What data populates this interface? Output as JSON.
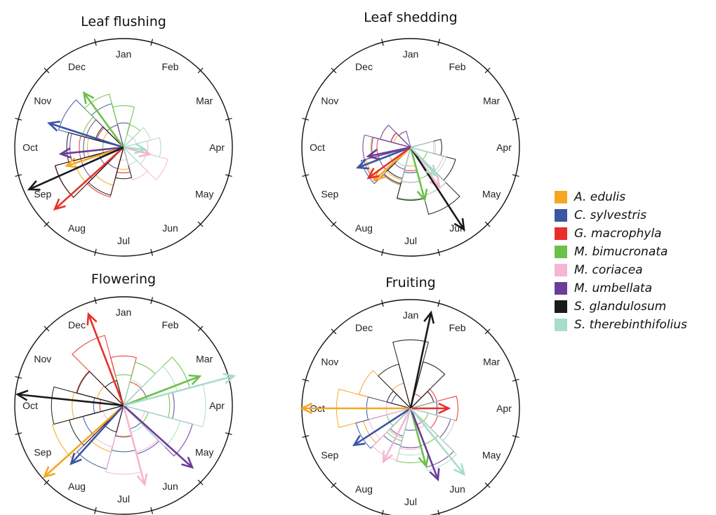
{
  "legend": {
    "species": [
      {
        "name": "A. edulis",
        "color": "#F5A623"
      },
      {
        "name": "C. sylvestris",
        "color": "#3A55A4"
      },
      {
        "name": "G. macrophyla",
        "color": "#E8302A"
      },
      {
        "name": "M. bimucronata",
        "color": "#6CC04A"
      },
      {
        "name": "M. coriacea",
        "color": "#F4B6D2"
      },
      {
        "name": "M. umbellata",
        "color": "#6A3D9A"
      },
      {
        "name": "S. glandulosum",
        "color": "#1A1A1A"
      },
      {
        "name": "S. therebinthifolius",
        "color": "#A8DCCB"
      }
    ]
  },
  "chart_data": [
    {
      "type": "circular-rose",
      "title": "Leaf flushing",
      "months": [
        "Jan",
        "Feb",
        "Mar",
        "Apr",
        "May",
        "Jun",
        "Jul",
        "Aug",
        "Sep",
        "Oct",
        "Nov",
        "Dec"
      ],
      "mean_vectors": [
        {
          "species": "A. edulis",
          "month": 8.4,
          "length": 0.55
        },
        {
          "species": "C. sylvestris",
          "month": 9.6,
          "length": 0.72
        },
        {
          "species": "G. macrophyla",
          "month": 7.6,
          "length": 0.85
        },
        {
          "species": "M. bimucronata",
          "month": 10.8,
          "length": 0.62
        },
        {
          "species": "M. coriacea",
          "month": 3.5,
          "length": 0.25
        },
        {
          "species": "M. umbellata",
          "month": 8.8,
          "length": 0.58
        },
        {
          "species": "S. glandulosum",
          "month": 8.2,
          "length": 0.95
        },
        {
          "species": "S. therebinthifolius",
          "month": 3.2,
          "length": 0.2
        }
      ]
    },
    {
      "type": "circular-rose",
      "title": "Leaf shedding",
      "months": [
        "Jan",
        "Feb",
        "Mar",
        "Apr",
        "May",
        "Jun",
        "Jul",
        "Aug",
        "Sep",
        "Oct",
        "Nov",
        "Dec"
      ],
      "mean_vectors": [
        {
          "species": "A. edulis",
          "month": 7.6,
          "length": 0.45
        },
        {
          "species": "C. sylvestris",
          "month": 8.3,
          "length": 0.52
        },
        {
          "species": "G. macrophyla",
          "month": 7.8,
          "length": 0.48
        },
        {
          "species": "M. bimucronata",
          "month": 5.5,
          "length": 0.5
        },
        {
          "species": "M. coriacea",
          "month": 4.8,
          "length": 0.45
        },
        {
          "species": "M. umbellata",
          "month": 8.6,
          "length": 0.4
        },
        {
          "species": "S. glandulosum",
          "month": 4.9,
          "length": 0.9
        },
        {
          "species": "S. therebinthifolius",
          "month": 4.6,
          "length": 0.35
        }
      ]
    },
    {
      "type": "circular-rose",
      "title": "Flowering",
      "months": [
        "Jan",
        "Feb",
        "Mar",
        "Apr",
        "May",
        "Jun",
        "Jul",
        "Aug",
        "Sep",
        "Oct",
        "Nov",
        "Dec"
      ],
      "mean_vectors": [
        {
          "species": "A. edulis",
          "month": 7.6,
          "length": 0.98
        },
        {
          "species": "C. sylvestris",
          "month": 7.4,
          "length": 0.72
        },
        {
          "species": "G. macrophyla",
          "month": 11.3,
          "length": 0.9
        },
        {
          "species": "M. bimucronata",
          "month": 2.3,
          "length": 0.75
        },
        {
          "species": "M. coriacea",
          "month": 5.5,
          "length": 0.75
        },
        {
          "species": "M. umbellata",
          "month": 4.4,
          "length": 0.85
        },
        {
          "species": "S. glandulosum",
          "month": 9.2,
          "length": 0.98
        },
        {
          "species": "S. therebinthifolius",
          "month": 2.5,
          "length": 1.05
        }
      ]
    },
    {
      "type": "circular-rose",
      "title": "Fruiting",
      "months": [
        "Jan",
        "Feb",
        "Mar",
        "Apr",
        "May",
        "Jun",
        "Jul",
        "Aug",
        "Sep",
        "Oct",
        "Nov",
        "Dec"
      ],
      "mean_vectors": [
        {
          "species": "A. edulis",
          "month": 9.0,
          "length": 1.0
        },
        {
          "species": "C. sylvestris",
          "month": 7.9,
          "length": 0.62
        },
        {
          "species": "G. macrophyla",
          "month": 3.0,
          "length": 0.35
        },
        {
          "species": "M. bimucronata",
          "month": 5.5,
          "length": 0.55
        },
        {
          "species": "M. coriacea",
          "month": 6.9,
          "length": 0.55
        },
        {
          "species": "M. umbellata",
          "month": 5.3,
          "length": 0.7
        },
        {
          "species": "S. glandulosum",
          "month": 0.4,
          "length": 0.9
        },
        {
          "species": "S. therebinthifolius",
          "month": 4.7,
          "length": 0.78
        }
      ]
    }
  ]
}
